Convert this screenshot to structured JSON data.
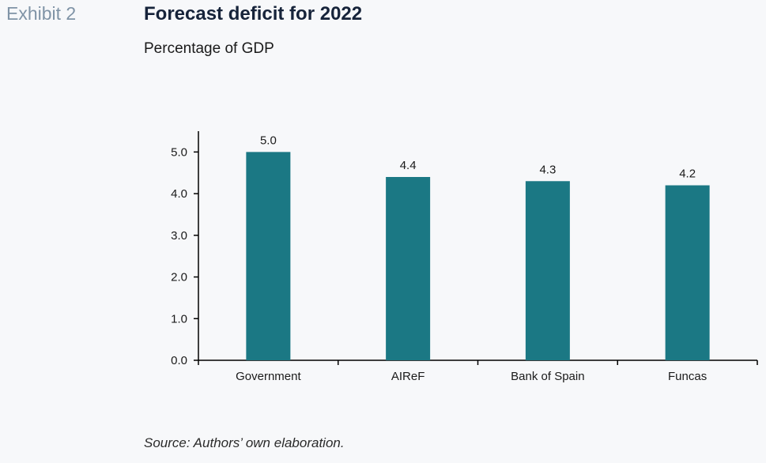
{
  "header": {
    "exhibit": "Exhibit 2",
    "title": "Forecast deficit for 2022",
    "subtitle": "Percentage of GDP"
  },
  "source": "Source: Authors’ own elaboration.",
  "colors": {
    "bar": "#1b7884",
    "axis": "#000000"
  },
  "chart_data": {
    "type": "bar",
    "categories": [
      "Government",
      "AIReF",
      "Bank of Spain",
      "Funcas"
    ],
    "values": [
      5.0,
      4.4,
      4.3,
      4.2
    ],
    "data_labels": [
      "5.0",
      "4.4",
      "4.3",
      "4.2"
    ],
    "yticks": [
      "0.0",
      "1.0",
      "2.0",
      "3.0",
      "4.0",
      "5.0"
    ],
    "ylim": [
      0,
      5.5
    ],
    "grid": false,
    "legend": "none"
  }
}
